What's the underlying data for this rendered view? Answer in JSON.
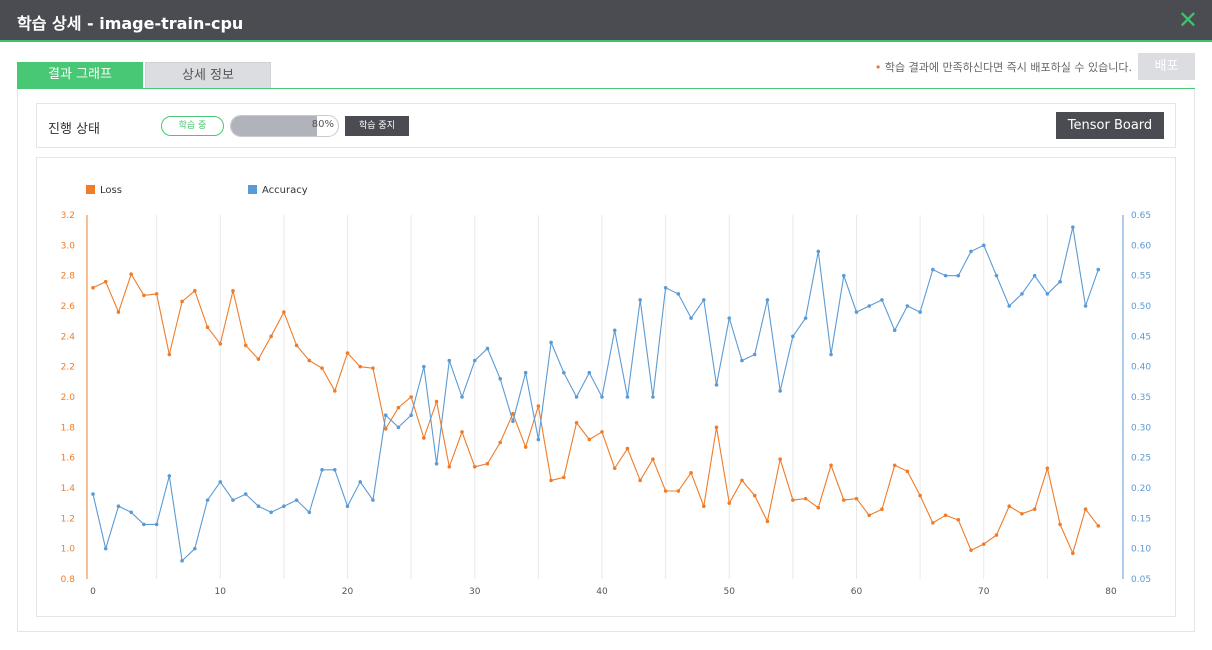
{
  "window": {
    "title": "학습 상세 - image-train-cpu",
    "close_icon": "close-icon"
  },
  "tabs": [
    {
      "label": "결과 그래프",
      "active": true
    },
    {
      "label": "상세 정보",
      "active": false
    }
  ],
  "notice": {
    "bullet": "•",
    "text": "학습 결과에 만족하신다면 즉시 배포하실 수 있습니다."
  },
  "deploy_label": "배포",
  "status": {
    "label": "진행 상태",
    "badge": "학습 중",
    "progress": 80,
    "progress_text": "80%",
    "stop_label": "학습 중지",
    "tensorboard_label": "Tensor Board"
  },
  "colors": {
    "accent": "#48c774",
    "loss": "#f07c2a",
    "accuracy": "#5b9bd5",
    "dark": "#4a4c51"
  },
  "chart_data": {
    "type": "line",
    "legend": [
      "Loss",
      "Accuracy"
    ],
    "legend_placement": "top-left",
    "grid": true,
    "x_ticks": [
      0,
      10,
      20,
      30,
      40,
      50,
      60,
      70,
      80
    ],
    "xlim": [
      0,
      80
    ],
    "y_left_ticks": [
      "0.8",
      "1.0",
      "1.2",
      "1.4",
      "1.6",
      "1.8",
      "2.0",
      "2.2",
      "2.4",
      "2.6",
      "2.8",
      "3.0",
      "3.2"
    ],
    "y_left_lim": [
      0.8,
      3.2
    ],
    "y_right_ticks": [
      "0.05",
      "0.10",
      "0.15",
      "0.20",
      "0.25",
      "0.30",
      "0.35",
      "0.40",
      "0.45",
      "0.50",
      "0.55",
      "0.60",
      "0.65"
    ],
    "y_right_lim": [
      0.05,
      0.65
    ],
    "series": [
      {
        "name": "Loss",
        "axis": "left",
        "color": "#f07c2a",
        "values": [
          2.72,
          2.76,
          2.56,
          2.81,
          2.67,
          2.68,
          2.28,
          2.63,
          2.7,
          2.46,
          2.35,
          2.7,
          2.34,
          2.25,
          2.4,
          2.56,
          2.34,
          2.24,
          2.19,
          2.04,
          2.29,
          2.2,
          2.19,
          1.79,
          1.93,
          2.0,
          1.73,
          1.97,
          1.54,
          1.77,
          1.54,
          1.56,
          1.7,
          1.89,
          1.67,
          1.94,
          1.45,
          1.47,
          1.83,
          1.72,
          1.77,
          1.53,
          1.66,
          1.45,
          1.59,
          1.38,
          1.38,
          1.5,
          1.28,
          1.8,
          1.3,
          1.45,
          1.35,
          1.18,
          1.59,
          1.32,
          1.33,
          1.27,
          1.55,
          1.32,
          1.33,
          1.22,
          1.26,
          1.55,
          1.51,
          1.35,
          1.17,
          1.22,
          1.19,
          0.99,
          1.03,
          1.09,
          1.28,
          1.23,
          1.26,
          1.53,
          1.16,
          0.97,
          1.26,
          1.15
        ]
      },
      {
        "name": "Accuracy",
        "axis": "right",
        "color": "#5b9bd5",
        "values": [
          0.19,
          0.1,
          0.17,
          0.16,
          0.14,
          0.14,
          0.22,
          0.08,
          0.1,
          0.18,
          0.21,
          0.18,
          0.19,
          0.17,
          0.16,
          0.17,
          0.18,
          0.16,
          0.23,
          0.23,
          0.17,
          0.21,
          0.18,
          0.32,
          0.3,
          0.32,
          0.4,
          0.24,
          0.41,
          0.35,
          0.41,
          0.43,
          0.38,
          0.31,
          0.39,
          0.28,
          0.44,
          0.39,
          0.35,
          0.39,
          0.35,
          0.46,
          0.35,
          0.51,
          0.35,
          0.53,
          0.52,
          0.48,
          0.51,
          0.37,
          0.48,
          0.41,
          0.42,
          0.51,
          0.36,
          0.45,
          0.48,
          0.59,
          0.42,
          0.55,
          0.49,
          0.5,
          0.51,
          0.46,
          0.5,
          0.49,
          0.56,
          0.55,
          0.55,
          0.59,
          0.6,
          0.55,
          0.5,
          0.52,
          0.55,
          0.52,
          0.54,
          0.63,
          0.5,
          0.56
        ]
      }
    ]
  }
}
